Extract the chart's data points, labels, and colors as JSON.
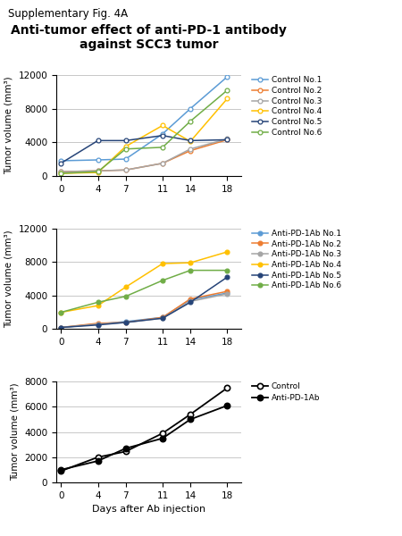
{
  "days": [
    0,
    4,
    7,
    11,
    14,
    18
  ],
  "title": "Anti-tumor effect of anti-PD-1 antibody against SCC3 tumor",
  "suptitle": "Supplementary Fig. 4A",
  "ylabel": "Tumor volume (mm³)",
  "xlabel": "Days after Ab injection",
  "control_data": [
    [
      1800,
      1900,
      2000,
      5000,
      8000,
      11800
    ],
    [
      500,
      600,
      700,
      1500,
      3000,
      4300
    ],
    [
      500,
      600,
      700,
      1500,
      3200,
      4400
    ],
    [
      300,
      400,
      3500,
      6000,
      4100,
      9200
    ],
    [
      1500,
      4200,
      4200,
      4800,
      4200,
      4300
    ],
    [
      300,
      500,
      3200,
      3400,
      6500,
      10200
    ]
  ],
  "control_colors": [
    "#5B9BD5",
    "#ED7D31",
    "#A5A5A5",
    "#FFC000",
    "#264478",
    "#70AD47"
  ],
  "control_labels": [
    "Control No.1",
    "Control No.2",
    "Control No.3",
    "Control No.4",
    "Control No.5",
    "Control No.6"
  ],
  "anti_data": [
    [
      200,
      600,
      900,
      1400,
      3500,
      4300
    ],
    [
      200,
      700,
      800,
      1400,
      3600,
      4500
    ],
    [
      200,
      600,
      800,
      1300,
      3300,
      4200
    ],
    [
      2000,
      2800,
      5000,
      7800,
      7900,
      9200
    ],
    [
      200,
      500,
      800,
      1300,
      3200,
      6200
    ],
    [
      2000,
      3200,
      3900,
      5800,
      7000,
      7000
    ]
  ],
  "anti_colors": [
    "#5B9BD5",
    "#ED7D31",
    "#A5A5A5",
    "#FFC000",
    "#264478",
    "#70AD47"
  ],
  "anti_labels": [
    "Anti-PD-1Ab No.1",
    "Anti-PD-1Ab No.2",
    "Anti-PD-1Ab No.3",
    "Anti-PD-1Ab No.4",
    "Anti-PD-1Ab No.5",
    "Anti-PD-1Ab No.6"
  ],
  "mean_control": [
    900,
    2000,
    2450,
    3900,
    5400,
    7500
  ],
  "mean_anti": [
    1000,
    1700,
    2700,
    3500,
    5000,
    6100
  ],
  "panel1_ylim": [
    0,
    12000
  ],
  "panel2_ylim": [
    0,
    12000
  ],
  "panel3_ylim": [
    0,
    8000
  ],
  "panel1_yticks": [
    0,
    4000,
    8000,
    12000
  ],
  "panel2_yticks": [
    0,
    4000,
    8000,
    12000
  ],
  "panel3_yticks": [
    0,
    2000,
    4000,
    6000,
    8000
  ],
  "bg_color": "#ffffff",
  "grid_color": "#c8c8c8",
  "legend_fontsize": 6.5,
  "axis_fontsize": 7.5,
  "title_fontsize": 10,
  "suptitle_fontsize": 8.5
}
